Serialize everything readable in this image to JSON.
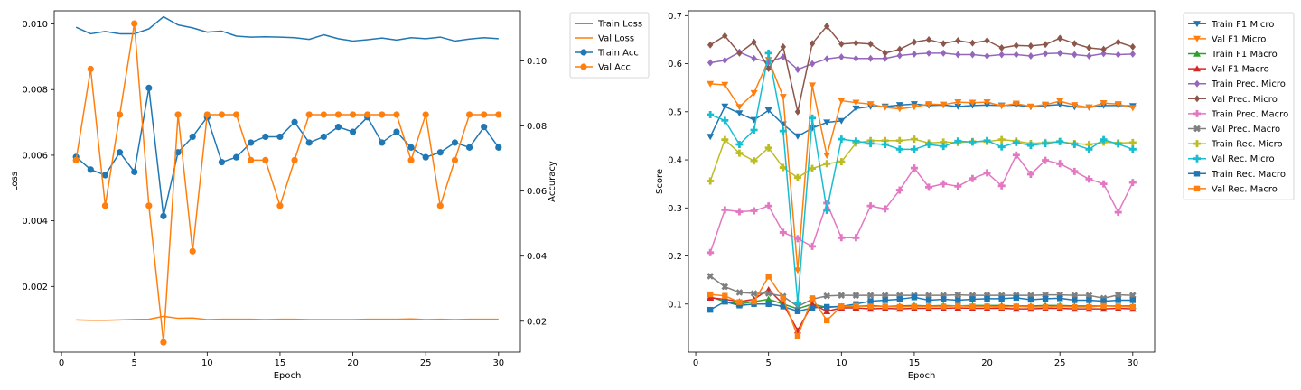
{
  "colors": {
    "train_loss": "#1f77b4",
    "val_loss": "#ff7f0e",
    "train_acc": "#1f77b4",
    "val_acc": "#ff7f0e",
    "train_f1_micro": "#1f77b4",
    "val_f1_micro": "#ff7f0e",
    "train_f1_macro": "#2ca02c",
    "val_f1_macro": "#d62728",
    "train_prec_micro": "#9467bd",
    "val_prec_micro": "#8c564b",
    "train_prec_macro": "#e377c2",
    "val_prec_macro": "#7f7f7f",
    "train_rec_micro": "#bcbd22",
    "val_rec_micro": "#17becf",
    "train_rec_macro": "#1f77b4",
    "val_rec_macro": "#ff7f0e"
  },
  "chart_data": [
    {
      "type": "line",
      "title": "",
      "xlabel": "Epoch",
      "ylabel": "Loss",
      "y2label": "Accuracy",
      "xlim": [
        -0.5,
        31.5
      ],
      "ylim": [
        0.0,
        0.0104
      ],
      "y2lim": [
        0.0105,
        0.1154
      ],
      "xticks": [
        0,
        5,
        10,
        15,
        20,
        25,
        30
      ],
      "yticks": [
        0.002,
        0.004,
        0.006,
        0.008,
        0.01
      ],
      "ytick_labels": [
        "0.002",
        "0.004",
        "0.006",
        "0.008",
        "0.010"
      ],
      "y2ticks": [
        0.02,
        0.04,
        0.06,
        0.08,
        0.1
      ],
      "y2tick_labels": [
        "0.02",
        "0.04",
        "0.06",
        "0.08",
        "0.10"
      ],
      "grid": false,
      "legend": "outside-top-right",
      "x": [
        1,
        2,
        3,
        4,
        5,
        6,
        7,
        8,
        9,
        10,
        11,
        12,
        13,
        14,
        15,
        16,
        17,
        18,
        19,
        20,
        21,
        22,
        23,
        24,
        25,
        26,
        27,
        28,
        29,
        30
      ],
      "series": [
        {
          "name": "Train Loss",
          "axis": "left",
          "marker": "none",
          "color_key": "train_loss",
          "values": [
            0.0099,
            0.0097,
            0.00977,
            0.0097,
            0.0097,
            0.00985,
            0.01022,
            0.00997,
            0.00988,
            0.00975,
            0.00978,
            0.00963,
            0.0096,
            0.00961,
            0.0096,
            0.00958,
            0.00953,
            0.00967,
            0.00955,
            0.00948,
            0.00952,
            0.00957,
            0.00951,
            0.00958,
            0.00955,
            0.0096,
            0.00948,
            0.00954,
            0.00958,
            0.00955
          ]
        },
        {
          "name": "Val Loss",
          "axis": "left",
          "marker": "none",
          "color_key": "val_loss",
          "values": [
            0.00098,
            0.00097,
            0.00097,
            0.00098,
            0.000995,
            0.001,
            0.00109,
            0.00103,
            0.00104,
            0.00099,
            0.001,
            0.001,
            0.001,
            0.00099,
            0.001,
            0.001,
            0.00099,
            0.00099,
            0.00099,
            0.00099,
            0.001,
            0.001,
            0.001,
            0.00101,
            0.00099,
            0.001,
            0.00099,
            0.001,
            0.001,
            0.001
          ]
        },
        {
          "name": "Train Acc",
          "axis": "right",
          "marker": "circle",
          "color_key": "train_acc",
          "values": [
            0.0705,
            0.0666,
            0.0649,
            0.0719,
            0.0659,
            0.0917,
            0.0523,
            0.0719,
            0.0767,
            0.0827,
            0.0689,
            0.0704,
            0.0749,
            0.0767,
            0.0767,
            0.0812,
            0.0749,
            0.0767,
            0.0797,
            0.0782,
            0.0827,
            0.0749,
            0.0782,
            0.0734,
            0.0704,
            0.0719,
            0.0749,
            0.0734,
            0.0797,
            0.0734
          ]
        },
        {
          "name": "Val Acc",
          "axis": "right",
          "marker": "circle",
          "color_key": "val_acc",
          "values": [
            0.0695,
            0.0975,
            0.0555,
            0.0835,
            0.1115,
            0.0555,
            0.0135,
            0.0835,
            0.0415,
            0.0835,
            0.0835,
            0.0835,
            0.0695,
            0.0695,
            0.0555,
            0.0695,
            0.0835,
            0.0835,
            0.0835,
            0.0835,
            0.0835,
            0.0835,
            0.0835,
            0.0695,
            0.0835,
            0.0555,
            0.0695,
            0.0835,
            0.0835,
            0.0835
          ]
        }
      ]
    },
    {
      "type": "line",
      "title": "",
      "xlabel": "Epoch",
      "ylabel": "Score",
      "xlim": [
        -0.5,
        31.5
      ],
      "ylim": [
        0.0,
        0.71
      ],
      "xticks": [
        0,
        5,
        10,
        15,
        20,
        25,
        30
      ],
      "yticks": [
        0.1,
        0.2,
        0.3,
        0.4,
        0.5,
        0.6,
        0.7
      ],
      "ytick_labels": [
        "0.1",
        "0.2",
        "0.3",
        "0.4",
        "0.5",
        "0.6",
        "0.7"
      ],
      "grid": false,
      "legend": "outside-top-right",
      "x": [
        1,
        2,
        3,
        4,
        5,
        6,
        7,
        8,
        9,
        10,
        11,
        12,
        13,
        14,
        15,
        16,
        17,
        18,
        19,
        20,
        21,
        22,
        23,
        24,
        25,
        26,
        27,
        28,
        29,
        30
      ],
      "series": [
        {
          "name": "Train F1 Micro",
          "marker": "tri-down",
          "color_key": "train_f1_micro",
          "values": [
            0.448,
            0.511,
            0.497,
            0.483,
            0.503,
            0.474,
            0.449,
            0.466,
            0.478,
            0.481,
            0.507,
            0.511,
            0.511,
            0.514,
            0.516,
            0.513,
            0.514,
            0.511,
            0.513,
            0.514,
            0.513,
            0.514,
            0.51,
            0.513,
            0.515,
            0.51,
            0.509,
            0.513,
            0.513,
            0.512
          ]
        },
        {
          "name": "Val F1 Micro",
          "marker": "tri-down",
          "color_key": "val_f1_micro",
          "values": [
            0.558,
            0.556,
            0.51,
            0.539,
            0.608,
            0.531,
            0.17,
            0.555,
            0.409,
            0.523,
            0.519,
            0.516,
            0.509,
            0.506,
            0.51,
            0.516,
            0.515,
            0.52,
            0.519,
            0.52,
            0.512,
            0.517,
            0.511,
            0.515,
            0.522,
            0.514,
            0.509,
            0.518,
            0.516,
            0.508
          ]
        },
        {
          "name": "Train F1 Macro",
          "marker": "tri-up",
          "color_key": "train_f1_macro",
          "values": [
            0.115,
            0.105,
            0.1,
            0.105,
            0.11,
            0.1,
            0.09,
            0.1,
            0.093,
            0.095,
            0.095,
            0.097,
            0.095,
            0.096,
            0.097,
            0.096,
            0.097,
            0.096,
            0.097,
            0.097,
            0.097,
            0.096,
            0.096,
            0.097,
            0.097,
            0.096,
            0.096,
            0.096,
            0.096,
            0.096
          ]
        },
        {
          "name": "Val F1 Macro",
          "marker": "tri-up",
          "color_key": "val_f1_macro",
          "values": [
            0.113,
            0.11,
            0.105,
            0.11,
            0.13,
            0.1,
            0.045,
            0.1,
            0.085,
            0.092,
            0.092,
            0.09,
            0.091,
            0.09,
            0.091,
            0.091,
            0.091,
            0.092,
            0.091,
            0.091,
            0.091,
            0.09,
            0.09,
            0.091,
            0.091,
            0.09,
            0.09,
            0.09,
            0.091,
            0.09
          ]
        },
        {
          "name": "Train Prec. Micro",
          "marker": "diamond",
          "color_key": "train_prec_micro",
          "values": [
            0.602,
            0.607,
            0.624,
            0.611,
            0.603,
            0.614,
            0.588,
            0.6,
            0.61,
            0.614,
            0.611,
            0.611,
            0.611,
            0.617,
            0.62,
            0.622,
            0.622,
            0.619,
            0.619,
            0.616,
            0.619,
            0.619,
            0.616,
            0.621,
            0.622,
            0.619,
            0.616,
            0.621,
            0.619,
            0.62
          ]
        },
        {
          "name": "Val Prec. Micro",
          "marker": "diamond",
          "color_key": "val_prec_micro",
          "values": [
            0.639,
            0.658,
            0.622,
            0.645,
            0.59,
            0.635,
            0.5,
            0.642,
            0.678,
            0.641,
            0.643,
            0.641,
            0.622,
            0.63,
            0.645,
            0.65,
            0.642,
            0.648,
            0.643,
            0.648,
            0.633,
            0.638,
            0.637,
            0.64,
            0.653,
            0.642,
            0.633,
            0.63,
            0.645,
            0.635
          ]
        },
        {
          "name": "Train Prec. Macro",
          "marker": "plus",
          "color_key": "train_prec_macro",
          "values": [
            0.207,
            0.296,
            0.292,
            0.294,
            0.304,
            0.249,
            0.236,
            0.22,
            0.31,
            0.238,
            0.238,
            0.304,
            0.298,
            0.337,
            0.383,
            0.343,
            0.35,
            0.345,
            0.361,
            0.373,
            0.346,
            0.41,
            0.37,
            0.399,
            0.392,
            0.376,
            0.36,
            0.35,
            0.291,
            0.353
          ]
        },
        {
          "name": "Val Prec. Macro",
          "marker": "x",
          "color_key": "val_prec_macro",
          "values": [
            0.158,
            0.136,
            0.124,
            0.122,
            0.122,
            0.116,
            0.095,
            0.11,
            0.117,
            0.118,
            0.118,
            0.118,
            0.118,
            0.118,
            0.118,
            0.118,
            0.118,
            0.119,
            0.118,
            0.118,
            0.118,
            0.118,
            0.118,
            0.119,
            0.119,
            0.118,
            0.118,
            0.112,
            0.119,
            0.118
          ]
        },
        {
          "name": "Train Rec. Micro",
          "marker": "plus",
          "color_key": "train_rec_micro",
          "values": [
            0.356,
            0.442,
            0.414,
            0.398,
            0.425,
            0.384,
            0.363,
            0.382,
            0.392,
            0.396,
            0.435,
            0.44,
            0.44,
            0.44,
            0.443,
            0.435,
            0.437,
            0.436,
            0.438,
            0.438,
            0.442,
            0.439,
            0.434,
            0.436,
            0.438,
            0.434,
            0.432,
            0.437,
            0.435,
            0.436
          ]
        },
        {
          "name": "Val Rec. Micro",
          "marker": "plus",
          "color_key": "val_rec_micro",
          "values": [
            0.494,
            0.482,
            0.432,
            0.462,
            0.622,
            0.46,
            0.102,
            0.487,
            0.295,
            0.443,
            0.439,
            0.434,
            0.432,
            0.422,
            0.422,
            0.432,
            0.428,
            0.439,
            0.437,
            0.44,
            0.427,
            0.436,
            0.43,
            0.434,
            0.438,
            0.432,
            0.422,
            0.442,
            0.433,
            0.422
          ]
        },
        {
          "name": "Train Rec. Macro",
          "marker": "square",
          "color_key": "train_rec_macro",
          "values": [
            0.088,
            0.105,
            0.097,
            0.1,
            0.1,
            0.095,
            0.085,
            0.092,
            0.094,
            0.095,
            0.1,
            0.106,
            0.108,
            0.11,
            0.114,
            0.108,
            0.11,
            0.108,
            0.11,
            0.111,
            0.111,
            0.113,
            0.109,
            0.111,
            0.112,
            0.108,
            0.108,
            0.106,
            0.108,
            0.108
          ]
        },
        {
          "name": "Val Rec. Macro",
          "marker": "square",
          "color_key": "val_rec_macro",
          "values": [
            0.12,
            0.117,
            0.104,
            0.105,
            0.157,
            0.112,
            0.033,
            0.112,
            0.066,
            0.095,
            0.096,
            0.095,
            0.095,
            0.094,
            0.095,
            0.095,
            0.095,
            0.096,
            0.095,
            0.095,
            0.094,
            0.095,
            0.094,
            0.094,
            0.095,
            0.094,
            0.094,
            0.096,
            0.095,
            0.094
          ]
        }
      ]
    }
  ]
}
